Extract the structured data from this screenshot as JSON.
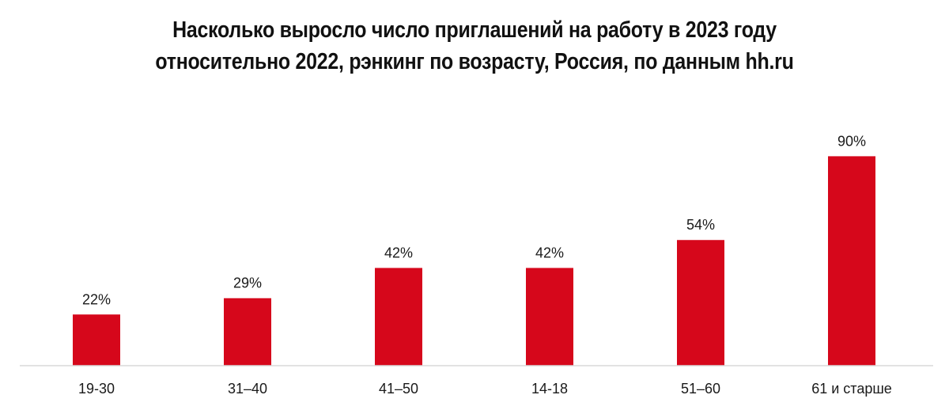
{
  "chart_data": {
    "type": "bar",
    "title": "Насколько выросло число приглашений на работу в 2023 году относительно 2022, рэнкинг по возрасту, Россия, по данным hh.ru",
    "categories": [
      "19-30",
      "31–40",
      "41–50",
      "14-18",
      "51–60",
      "61 и старше"
    ],
    "values": [
      22,
      29,
      42,
      42,
      54,
      90
    ],
    "data_labels": [
      "22%",
      "29%",
      "42%",
      "42%",
      "54%",
      "90%"
    ],
    "unit": "%",
    "ylim": [
      0,
      100
    ],
    "grid": false,
    "legend": "none",
    "bar_color": "#d6071b"
  }
}
